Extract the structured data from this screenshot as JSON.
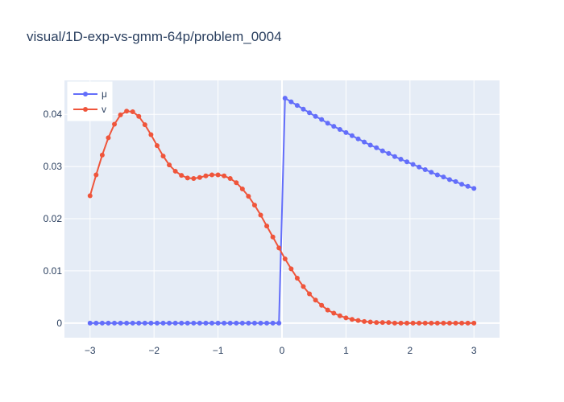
{
  "chart_data": {
    "type": "line",
    "title": "visual/1D-exp-vs-gmm-64p/problem_0004",
    "xlabel": "",
    "ylabel": "",
    "xlim": [
      -3.4,
      3.4
    ],
    "ylim": [
      -0.0028,
      0.0465
    ],
    "xticks": [
      -3,
      -2,
      -1,
      0,
      1,
      2,
      3
    ],
    "xtick_labels": [
      "−3",
      "−2",
      "−1",
      "0",
      "1",
      "2",
      "3"
    ],
    "yticks": [
      0,
      0.01,
      0.02,
      0.03,
      0.04
    ],
    "ytick_labels": [
      "0",
      "0.01",
      "0.02",
      "0.03",
      "0.04"
    ],
    "grid": true,
    "legend_position": "top-left",
    "colors": {
      "mu": "#636efa",
      "nu": "#ef553b",
      "plot_bg": "#e5ecf6",
      "grid": "#ffffff",
      "text": "#2a3f5f"
    },
    "series": [
      {
        "name": "μ",
        "x": [
          -3,
          -2.9048,
          -2.8095,
          -2.7143,
          -2.619,
          -2.5238,
          -2.4286,
          -2.3333,
          -2.2381,
          -2.1429,
          -2.0476,
          -1.9524,
          -1.8571,
          -1.7619,
          -1.6667,
          -1.5714,
          -1.4762,
          -1.381,
          -1.2857,
          -1.1905,
          -1.0952,
          -1,
          -0.9048,
          -0.8095,
          -0.7143,
          -0.619,
          -0.5238,
          -0.4286,
          -0.3333,
          -0.2381,
          -0.1429,
          -0.0476,
          0.0476,
          0.1429,
          0.2381,
          0.3333,
          0.4286,
          0.5238,
          0.619,
          0.7143,
          0.8095,
          0.9048,
          1,
          1.0952,
          1.1905,
          1.2857,
          1.381,
          1.4762,
          1.5714,
          1.6667,
          1.7619,
          1.8571,
          1.9524,
          2.0476,
          2.1429,
          2.2381,
          2.3333,
          2.4286,
          2.5238,
          2.619,
          2.7143,
          2.8095,
          2.9048,
          3
        ],
        "values": [
          0,
          0,
          0,
          0,
          0,
          0,
          0,
          0,
          0,
          0,
          0,
          0,
          0,
          0,
          0,
          0,
          0,
          0,
          0,
          0,
          0,
          0,
          0,
          0,
          0,
          0,
          0,
          0,
          0,
          0,
          0,
          0,
          0.0431,
          0.0424,
          0.0417,
          0.041,
          0.0403,
          0.0396,
          0.039,
          0.0383,
          0.0377,
          0.0371,
          0.0365,
          0.0359,
          0.0353,
          0.0347,
          0.0341,
          0.0336,
          0.033,
          0.0325,
          0.0319,
          0.0314,
          0.0309,
          0.0304,
          0.0299,
          0.0294,
          0.0289,
          0.0284,
          0.028,
          0.0275,
          0.0271,
          0.0266,
          0.0262,
          0.0258
        ]
      },
      {
        "name": "v",
        "x": [
          -3,
          -2.9048,
          -2.8095,
          -2.7143,
          -2.619,
          -2.5238,
          -2.4286,
          -2.3333,
          -2.2381,
          -2.1429,
          -2.0476,
          -1.9524,
          -1.8571,
          -1.7619,
          -1.6667,
          -1.5714,
          -1.4762,
          -1.381,
          -1.2857,
          -1.1905,
          -1.0952,
          -1,
          -0.9048,
          -0.8095,
          -0.7143,
          -0.619,
          -0.5238,
          -0.4286,
          -0.3333,
          -0.2381,
          -0.1429,
          -0.0476,
          0.0476,
          0.1429,
          0.2381,
          0.3333,
          0.4286,
          0.5238,
          0.619,
          0.7143,
          0.8095,
          0.9048,
          1,
          1.0952,
          1.1905,
          1.2857,
          1.381,
          1.4762,
          1.5714,
          1.6667,
          1.7619,
          1.8571,
          1.9524,
          2.0476,
          2.1429,
          2.2381,
          2.3333,
          2.4286,
          2.5238,
          2.619,
          2.7143,
          2.8095,
          2.9048,
          3
        ],
        "values": [
          0.0244,
          0.0284,
          0.0322,
          0.0355,
          0.0381,
          0.0399,
          0.0406,
          0.0405,
          0.0396,
          0.038,
          0.0361,
          0.034,
          0.032,
          0.0303,
          0.0291,
          0.0283,
          0.0278,
          0.0277,
          0.0279,
          0.0282,
          0.0284,
          0.0284,
          0.0282,
          0.0277,
          0.0269,
          0.0257,
          0.0243,
          0.0226,
          0.0207,
          0.0186,
          0.0165,
          0.0144,
          0.0123,
          0.0104,
          0.0086,
          0.007,
          0.0056,
          0.0044,
          0.0034,
          0.0025,
          0.0019,
          0.0014,
          0.001,
          0.0007,
          0.0005,
          0.0003,
          0.0002,
          0.0001,
          0.0001,
          0.0001,
          0,
          0,
          0,
          0,
          0,
          0,
          0,
          0,
          0,
          0,
          0,
          0,
          0,
          0
        ]
      }
    ]
  }
}
